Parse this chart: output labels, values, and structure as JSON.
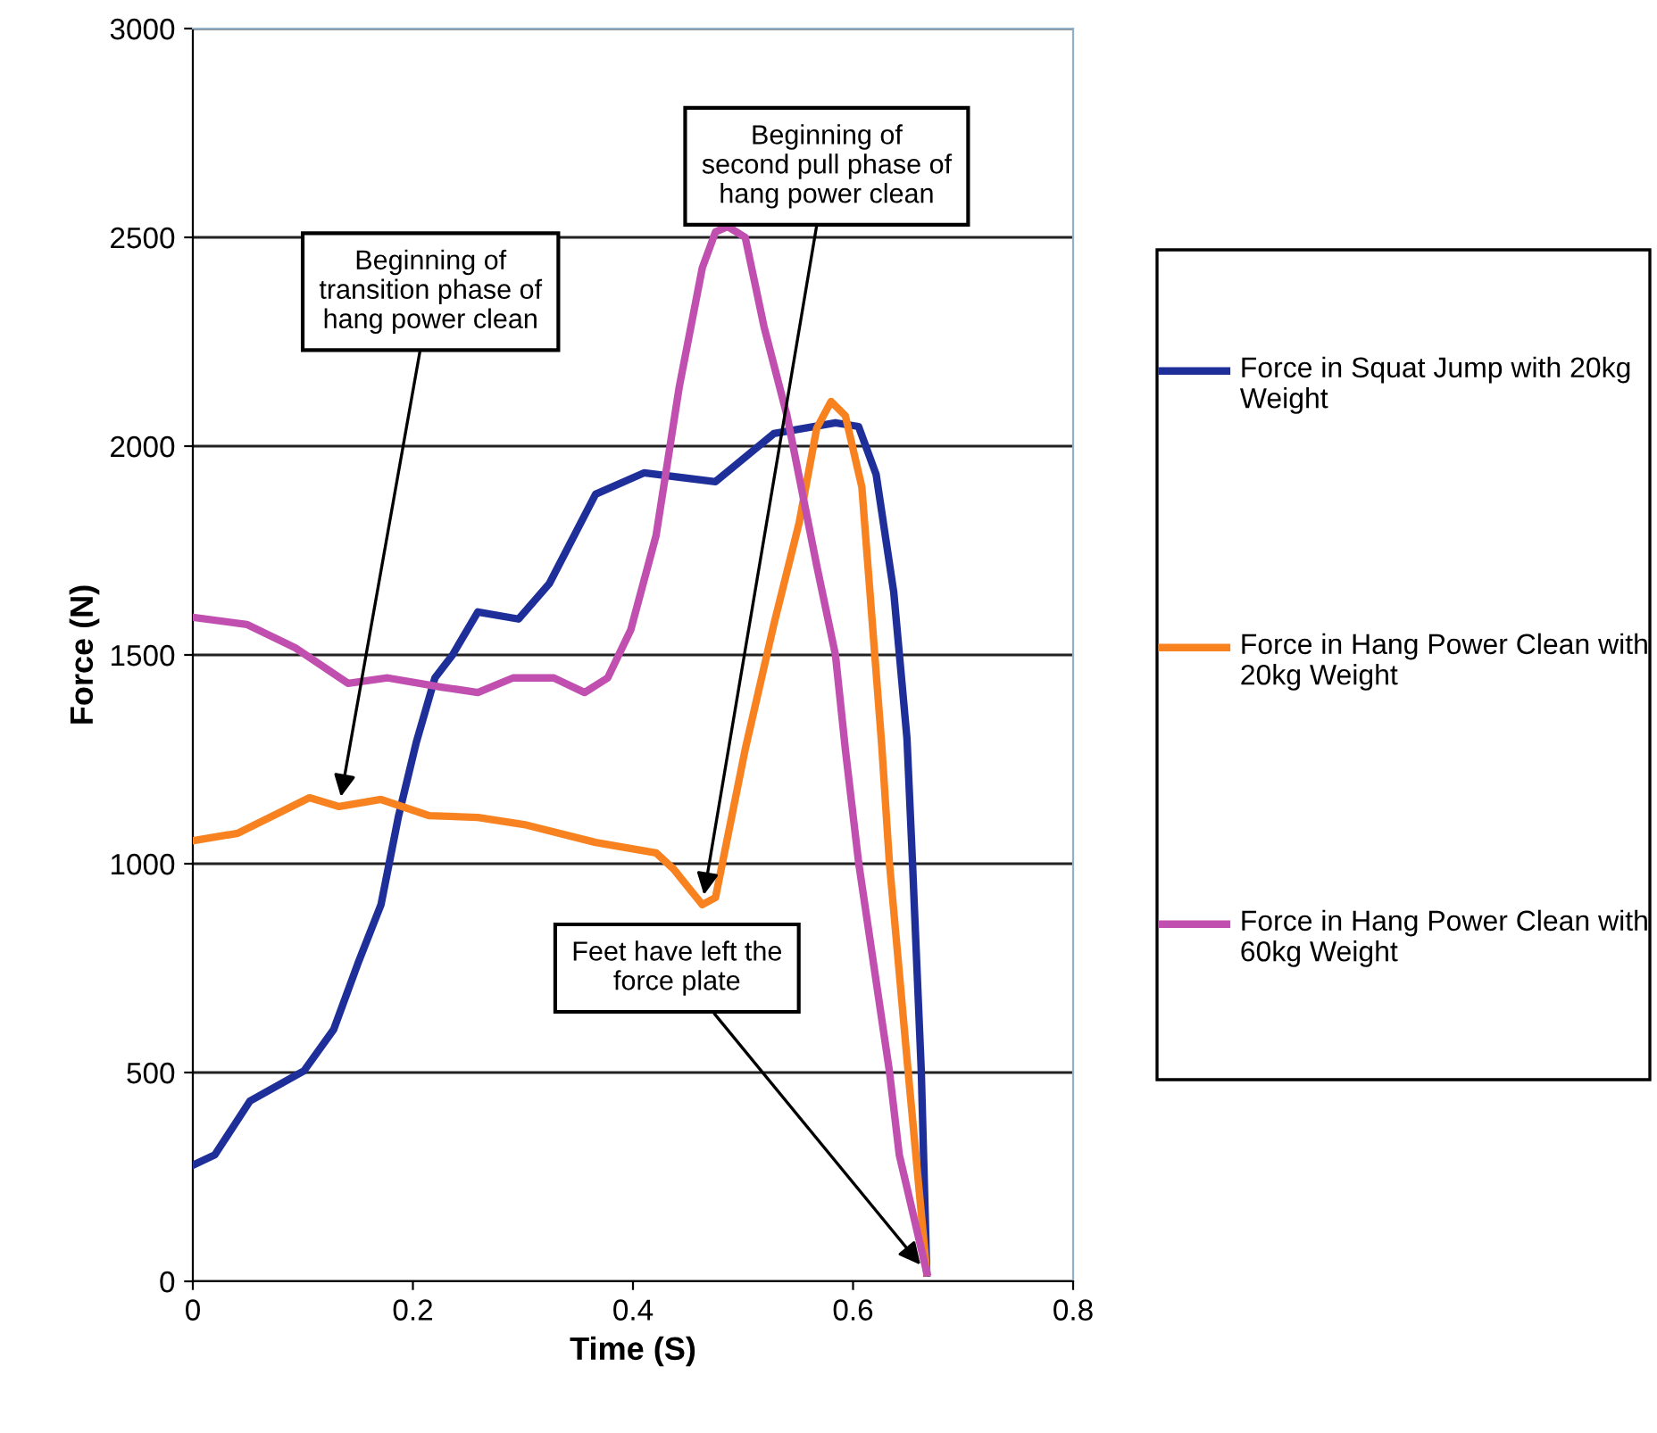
{
  "chart_data": {
    "type": "line",
    "xlabel": "Time (S)",
    "ylabel": "Force (N)",
    "xlim": [
      0,
      0.8
    ],
    "xticks": [
      0,
      0.2,
      0.4,
      0.6,
      0.8
    ],
    "ylim": [
      0,
      3000
    ],
    "yticks": [
      0,
      500,
      1000,
      1500,
      2000,
      2500,
      3000
    ],
    "grid": "y",
    "legend": "right",
    "marker": "none",
    "line_style": "solid",
    "series": [
      {
        "name": "Force in Squat Jump with 20kg Weight",
        "color": "#1f2f9a",
        "x": [
          0,
          0.02,
          0.052,
          0.101,
          0.128,
          0.15,
          0.171,
          0.187,
          0.203,
          0.22,
          0.236,
          0.259,
          0.296,
          0.324,
          0.366,
          0.41,
          0.475,
          0.528,
          0.584,
          0.605,
          0.621,
          0.637,
          0.649,
          0.654,
          0.662,
          0.667
        ],
        "values": [
          278,
          303,
          432,
          504,
          603,
          761,
          902,
          1115,
          1290,
          1445,
          1500,
          1603,
          1586,
          1671,
          1885,
          1936,
          1915,
          2030,
          2056,
          2047,
          1932,
          1650,
          1300,
          1004,
          504,
          20
        ]
      },
      {
        "name": "Force in Hang Power Clean with 20kg Weight",
        "color": "#f7821f",
        "x": [
          0,
          0.041,
          0.106,
          0.133,
          0.171,
          0.215,
          0.259,
          0.301,
          0.366,
          0.421,
          0.437,
          0.463,
          0.475,
          0.502,
          0.528,
          0.551,
          0.567,
          0.58,
          0.593,
          0.608,
          0.626,
          0.633,
          0.65,
          0.667
        ],
        "values": [
          1055,
          1073,
          1158,
          1137,
          1154,
          1115,
          1111,
          1094,
          1051,
          1026,
          987,
          902,
          919,
          1274,
          1573,
          1816,
          2043,
          2107,
          2073,
          1902,
          1286,
          1004,
          504,
          21
        ]
      },
      {
        "name": "Force in Hang Power Clean with 60kg Weight",
        "color": "#c04fb0",
        "x": [
          0,
          0.049,
          0.093,
          0.141,
          0.177,
          0.226,
          0.259,
          0.291,
          0.328,
          0.356,
          0.377,
          0.398,
          0.421,
          0.442,
          0.463,
          0.475,
          0.486,
          0.502,
          0.519,
          0.54,
          0.567,
          0.584,
          0.593,
          0.605,
          0.633,
          0.642,
          0.667
        ],
        "values": [
          1590,
          1573,
          1517,
          1432,
          1445,
          1423,
          1410,
          1445,
          1445,
          1410,
          1445,
          1560,
          1786,
          2141,
          2427,
          2513,
          2526,
          2500,
          2287,
          2073,
          1714,
          1500,
          1274,
          1004,
          504,
          303,
          21
        ]
      }
    ],
    "annotations": [
      {
        "text": "Beginning of\ntransition phase of\nhang power clean",
        "x": 0.133,
        "y": 1137
      },
      {
        "text": "Beginning of\nsecond pull phase of\nhang power clean",
        "x": 0.463,
        "y": 902
      },
      {
        "text": "Feet have left the\nforce plate",
        "x": 0.667,
        "y": 21
      }
    ]
  }
}
